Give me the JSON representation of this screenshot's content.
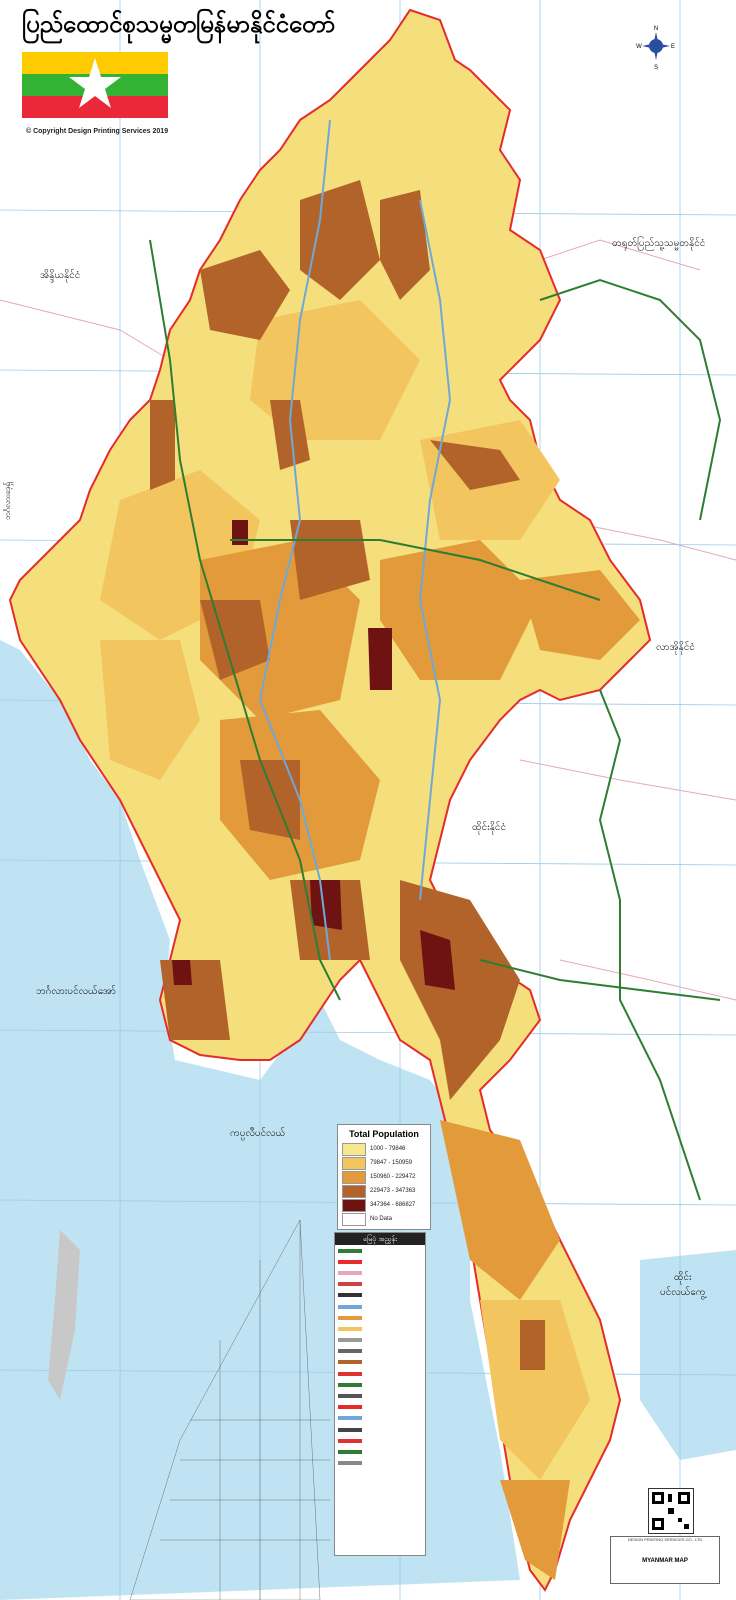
{
  "title": "ပြည်ထောင်စုသမ္မတမြန်မာနိုင်ငံတော်",
  "copyright": "© Copyright Design Printing Services 2019",
  "compass": {
    "n": "N",
    "s": "S",
    "e": "E",
    "w": "W"
  },
  "labels": {
    "india": "အိန္ဒိယနိုင်ငံ",
    "china": "တရုတ်ပြည်သူ့သမ္မတနိုင်ငံ",
    "laos": "လာအိုနိုင်ငံ",
    "thailand": "ထိုင်းနိုင်ငံ",
    "bay": "ဘင်္ဂလားပင်လယ်အော်",
    "andaman": "ကပ္ပလီပင်လယ်",
    "gulf": "ထိုင်း\nပင်လယ်ကွေ့",
    "bangladesh": "ဘင်္ဂလားဒေ့ရှ်"
  },
  "legend": {
    "title": "Total Population",
    "items": [
      {
        "label": "1000 - 79846",
        "color": "#f6e88a"
      },
      {
        "label": "79847 - 150959",
        "color": "#f2c55e"
      },
      {
        "label": "150960 - 229472",
        "color": "#e39a3b"
      },
      {
        "label": "229473 - 347363",
        "color": "#b2632a"
      },
      {
        "label": "347364 - 686827",
        "color": "#6e1212"
      },
      {
        "label": "No Data",
        "color": "#ffffff"
      }
    ]
  },
  "key": {
    "title": "မြေပုံ အညွှန်း"
  },
  "footer": {
    "company": "DESIGN PRINTING SERVICES CO., LTD",
    "map_name": "MYANMAR MAP"
  },
  "colors": {
    "sea": "#bfe3f3",
    "land_outside": "#ffffff",
    "border": "#e52b2b",
    "road": "#2e7d32",
    "river": "#6fa8d8",
    "grid": "#9ccbe6"
  }
}
